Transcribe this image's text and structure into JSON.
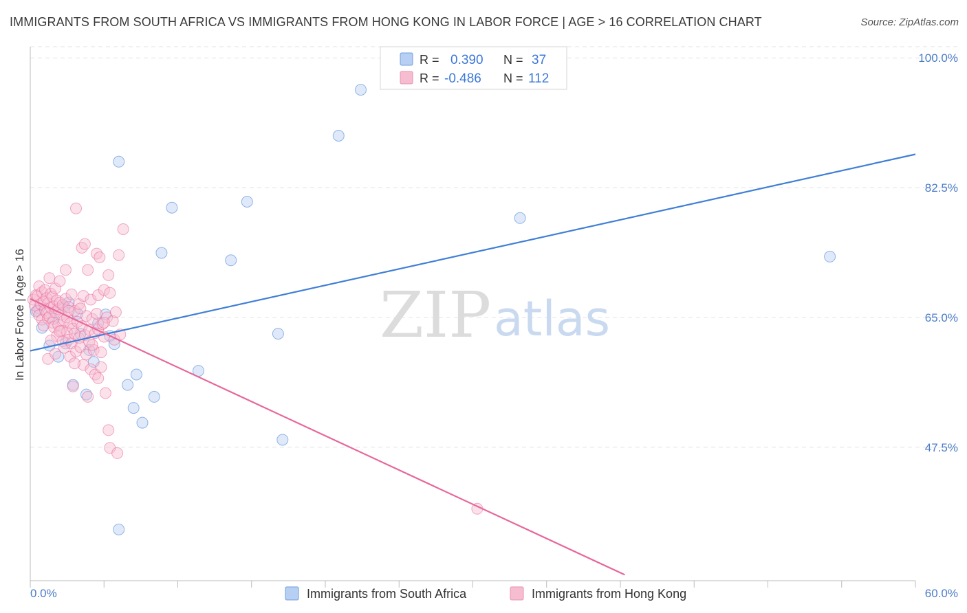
{
  "header": {
    "title": "IMMIGRANTS FROM SOUTH AFRICA VS IMMIGRANTS FROM HONG KONG IN LABOR FORCE | AGE > 16 CORRELATION CHART",
    "source": "Source: ZipAtlas.com"
  },
  "watermark": {
    "zip": "ZIP",
    "atlas": "atlas"
  },
  "colors": {
    "blue": "#3f7fd6",
    "blue_fill": "#b7cff2",
    "pink": "#e8679a",
    "pink_fill": "#f6bdd1",
    "tick_text": "#4a7cc7"
  },
  "stats_legend": {
    "rows": [
      {
        "r_label": "R =",
        "r_value": "0.390",
        "n_label": "N =",
        "n_value": "37"
      },
      {
        "r_label": "R =",
        "r_value": "-0.486",
        "n_label": "N =",
        "n_value": "112"
      }
    ]
  },
  "chart_data": {
    "type": "scatter",
    "title": "IMMIGRANTS FROM SOUTH AFRICA VS IMMIGRANTS FROM HONG KONG IN LABOR FORCE | AGE > 16 CORRELATION CHART",
    "xlabel": "",
    "ylabel": "In Labor Force | Age > 16",
    "xlim": [
      0,
      60
    ],
    "ylim": [
      29.5,
      101.5
    ],
    "x_tick_labels": [
      "0.0%",
      "60.0%"
    ],
    "y_ticks": [
      47.5,
      65.0,
      82.5,
      100.0
    ],
    "y_tick_labels": [
      "47.5%",
      "65.0%",
      "82.5%",
      "100.0%"
    ],
    "grid": true,
    "legend_position": "bottom",
    "series": [
      {
        "name": "Immigrants from South Africa",
        "color": "blue",
        "points": [
          [
            0.4,
            65.8
          ],
          [
            0.8,
            63.6
          ],
          [
            1.3,
            61.2
          ],
          [
            1.9,
            59.7
          ],
          [
            2.3,
            66.5
          ],
          [
            2.4,
            61.5
          ],
          [
            2.9,
            55.9
          ],
          [
            3.4,
            62.8
          ],
          [
            3.8,
            54.6
          ],
          [
            4.3,
            59.0
          ],
          [
            4.6,
            64.2
          ],
          [
            5.1,
            65.4
          ],
          [
            5.4,
            62.5
          ],
          [
            5.7,
            61.4
          ],
          [
            6.0,
            86.0
          ],
          [
            6.6,
            55.9
          ],
          [
            7.0,
            52.8
          ],
          [
            7.2,
            57.3
          ],
          [
            7.6,
            50.8
          ],
          [
            8.4,
            54.3
          ],
          [
            8.9,
            73.7
          ],
          [
            9.6,
            79.8
          ],
          [
            11.4,
            57.8
          ],
          [
            13.6,
            72.7
          ],
          [
            14.7,
            80.6
          ],
          [
            16.8,
            62.8
          ],
          [
            17.1,
            48.5
          ],
          [
            20.9,
            89.5
          ],
          [
            22.4,
            95.7
          ],
          [
            33.2,
            78.4
          ],
          [
            54.2,
            73.2
          ],
          [
            6.0,
            36.4
          ],
          [
            0.6,
            66.2
          ],
          [
            1.6,
            64.8
          ],
          [
            2.6,
            67.0
          ],
          [
            3.2,
            65.5
          ],
          [
            4.0,
            60.6
          ]
        ]
      },
      {
        "name": "Immigrants from Hong Kong",
        "color": "pink",
        "points": [
          [
            0.2,
            67.4
          ],
          [
            0.3,
            66.6
          ],
          [
            0.4,
            68.0
          ],
          [
            0.5,
            65.9
          ],
          [
            0.5,
            67.9
          ],
          [
            0.6,
            69.2
          ],
          [
            0.6,
            65.3
          ],
          [
            0.7,
            66.8
          ],
          [
            0.8,
            68.4
          ],
          [
            0.8,
            64.7
          ],
          [
            0.9,
            67.1
          ],
          [
            1.0,
            66.0
          ],
          [
            1.0,
            68.7
          ],
          [
            1.1,
            65.6
          ],
          [
            1.1,
            67.6
          ],
          [
            1.2,
            64.9
          ],
          [
            1.2,
            66.9
          ],
          [
            1.3,
            70.3
          ],
          [
            1.3,
            65.1
          ],
          [
            1.4,
            68.2
          ],
          [
            1.4,
            66.3
          ],
          [
            1.5,
            64.3
          ],
          [
            1.5,
            67.8
          ],
          [
            1.6,
            66.5
          ],
          [
            1.6,
            63.7
          ],
          [
            1.7,
            68.9
          ],
          [
            1.7,
            65.7
          ],
          [
            1.8,
            67.3
          ],
          [
            1.8,
            62.5
          ],
          [
            1.9,
            66.1
          ],
          [
            1.9,
            64.0
          ],
          [
            2.0,
            69.9
          ],
          [
            2.0,
            67.0
          ],
          [
            2.1,
            63.2
          ],
          [
            2.1,
            65.4
          ],
          [
            2.2,
            61.8
          ],
          [
            2.2,
            66.7
          ],
          [
            2.3,
            64.6
          ],
          [
            2.3,
            60.9
          ],
          [
            2.4,
            71.4
          ],
          [
            2.4,
            67.5
          ],
          [
            2.5,
            63.0
          ],
          [
            2.5,
            65.0
          ],
          [
            2.6,
            62.0
          ],
          [
            2.6,
            66.4
          ],
          [
            2.7,
            64.2
          ],
          [
            2.7,
            59.7
          ],
          [
            2.8,
            61.5
          ],
          [
            2.8,
            68.1
          ],
          [
            2.9,
            63.5
          ],
          [
            2.9,
            55.7
          ],
          [
            3.0,
            65.9
          ],
          [
            3.0,
            62.8
          ],
          [
            3.1,
            79.7
          ],
          [
            3.1,
            60.4
          ],
          [
            3.2,
            64.4
          ],
          [
            3.3,
            62.2
          ],
          [
            3.3,
            66.8
          ],
          [
            3.4,
            61.0
          ],
          [
            3.5,
            63.8
          ],
          [
            3.5,
            74.4
          ],
          [
            3.6,
            58.6
          ],
          [
            3.6,
            67.9
          ],
          [
            3.7,
            74.9
          ],
          [
            3.7,
            62.6
          ],
          [
            3.8,
            60.0
          ],
          [
            3.8,
            65.2
          ],
          [
            3.9,
            71.4
          ],
          [
            3.9,
            54.3
          ],
          [
            4.0,
            63.3
          ],
          [
            4.0,
            61.7
          ],
          [
            4.1,
            67.4
          ],
          [
            4.1,
            58.0
          ],
          [
            4.2,
            64.8
          ],
          [
            4.3,
            60.6
          ],
          [
            4.4,
            62.9
          ],
          [
            4.4,
            57.3
          ],
          [
            4.5,
            73.6
          ],
          [
            4.5,
            65.5
          ],
          [
            4.6,
            68.0
          ],
          [
            4.6,
            63.4
          ],
          [
            4.7,
            73.1
          ],
          [
            4.8,
            60.3
          ],
          [
            4.8,
            58.3
          ],
          [
            4.9,
            64.1
          ],
          [
            5.0,
            68.7
          ],
          [
            5.0,
            62.4
          ],
          [
            5.1,
            54.8
          ],
          [
            5.2,
            65.0
          ],
          [
            5.3,
            49.8
          ],
          [
            5.3,
            70.7
          ],
          [
            5.4,
            68.3
          ],
          [
            5.4,
            47.4
          ],
          [
            5.6,
            64.5
          ],
          [
            5.7,
            62.0
          ],
          [
            5.8,
            65.7
          ],
          [
            5.9,
            46.7
          ],
          [
            6.0,
            73.4
          ],
          [
            6.1,
            62.7
          ],
          [
            6.3,
            76.9
          ],
          [
            1.2,
            59.4
          ],
          [
            1.4,
            61.9
          ],
          [
            2.0,
            63.1
          ],
          [
            2.6,
            65.9
          ],
          [
            3.0,
            58.8
          ],
          [
            3.4,
            66.2
          ],
          [
            4.2,
            61.3
          ],
          [
            4.6,
            56.8
          ],
          [
            5.0,
            64.3
          ],
          [
            30.3,
            39.2
          ],
          [
            0.9,
            63.9
          ],
          [
            1.7,
            60.1
          ]
        ]
      }
    ],
    "trendlines": [
      {
        "series": "Immigrants from South Africa",
        "x": [
          0,
          60
        ],
        "y": [
          60.5,
          87.0
        ]
      },
      {
        "series": "Immigrants from Hong Kong",
        "x": [
          0,
          40.3
        ],
        "y": [
          67.5,
          30.3
        ]
      }
    ]
  },
  "bottom_legend": {
    "items": [
      {
        "label": "Immigrants from South Africa"
      },
      {
        "label": "Immigrants from Hong Kong"
      }
    ]
  }
}
